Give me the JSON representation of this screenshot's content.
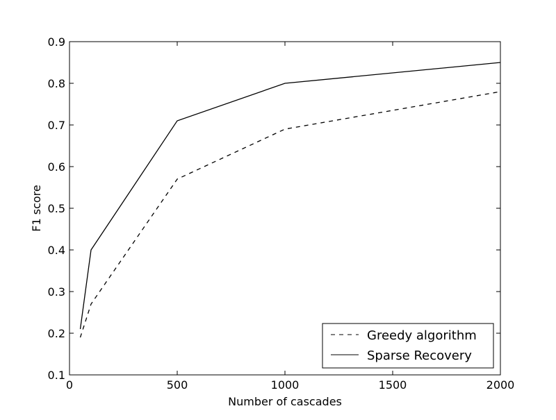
{
  "chart_data": {
    "type": "line",
    "title": "",
    "xlabel": "Number of cascades",
    "ylabel": "F1 score",
    "xlim": [
      0,
      2000
    ],
    "ylim": [
      0.1,
      0.9
    ],
    "xticks": [
      "0",
      "500",
      "1000",
      "1500",
      "2000"
    ],
    "yticks": [
      "0.1",
      "0.2",
      "0.3",
      "0.4",
      "0.5",
      "0.6",
      "0.7",
      "0.8",
      "0.9"
    ],
    "grid": false,
    "legend_position": "bottom-right",
    "series": [
      {
        "name": "Greedy algorithm",
        "style": "dashed",
        "color": "#000000",
        "x": [
          50,
          100,
          500,
          1000,
          2000
        ],
        "y": [
          0.19,
          0.27,
          0.57,
          0.69,
          0.78
        ]
      },
      {
        "name": "Sparse Recovery",
        "style": "solid",
        "color": "#000000",
        "x": [
          50,
          100,
          500,
          1000,
          2000
        ],
        "y": [
          0.21,
          0.4,
          0.71,
          0.8,
          0.85
        ]
      }
    ]
  }
}
